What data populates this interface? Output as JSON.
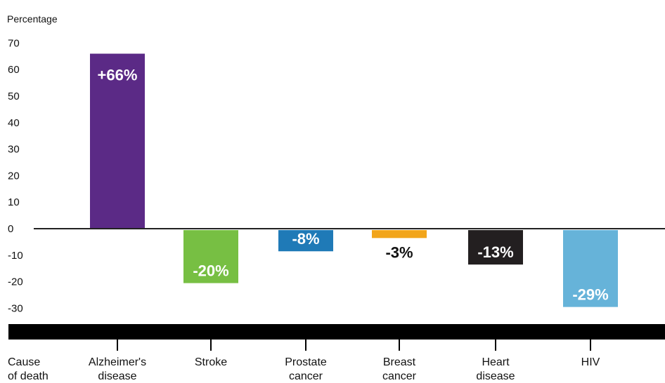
{
  "chart_data": {
    "type": "bar",
    "ylabel": "Percentage",
    "xlabel": "Cause of death",
    "ylim": [
      -30,
      70
    ],
    "yticks": [
      70,
      60,
      50,
      40,
      30,
      20,
      10,
      0,
      -10,
      -20,
      -30
    ],
    "categories": [
      {
        "lines": [
          "Alzheimer's",
          "disease"
        ]
      },
      {
        "lines": [
          "Stroke"
        ]
      },
      {
        "lines": [
          "Prostate",
          "cancer"
        ]
      },
      {
        "lines": [
          "Breast",
          "cancer"
        ]
      },
      {
        "lines": [
          "Heart",
          "disease"
        ]
      },
      {
        "lines": [
          "HIV"
        ]
      }
    ],
    "xlabel_lines": [
      "Cause",
      "of death"
    ],
    "values": [
      66,
      -20,
      -8,
      -3,
      -13,
      -29
    ],
    "value_labels": [
      "+66%",
      "-20%",
      "-8%",
      "-3%",
      "-13%",
      "-29%"
    ],
    "colors": [
      "#5b2a86",
      "#77bf43",
      "#1f7ab7",
      "#f2a51a",
      "#231f20",
      "#66b3d9"
    ],
    "grid": false
  }
}
